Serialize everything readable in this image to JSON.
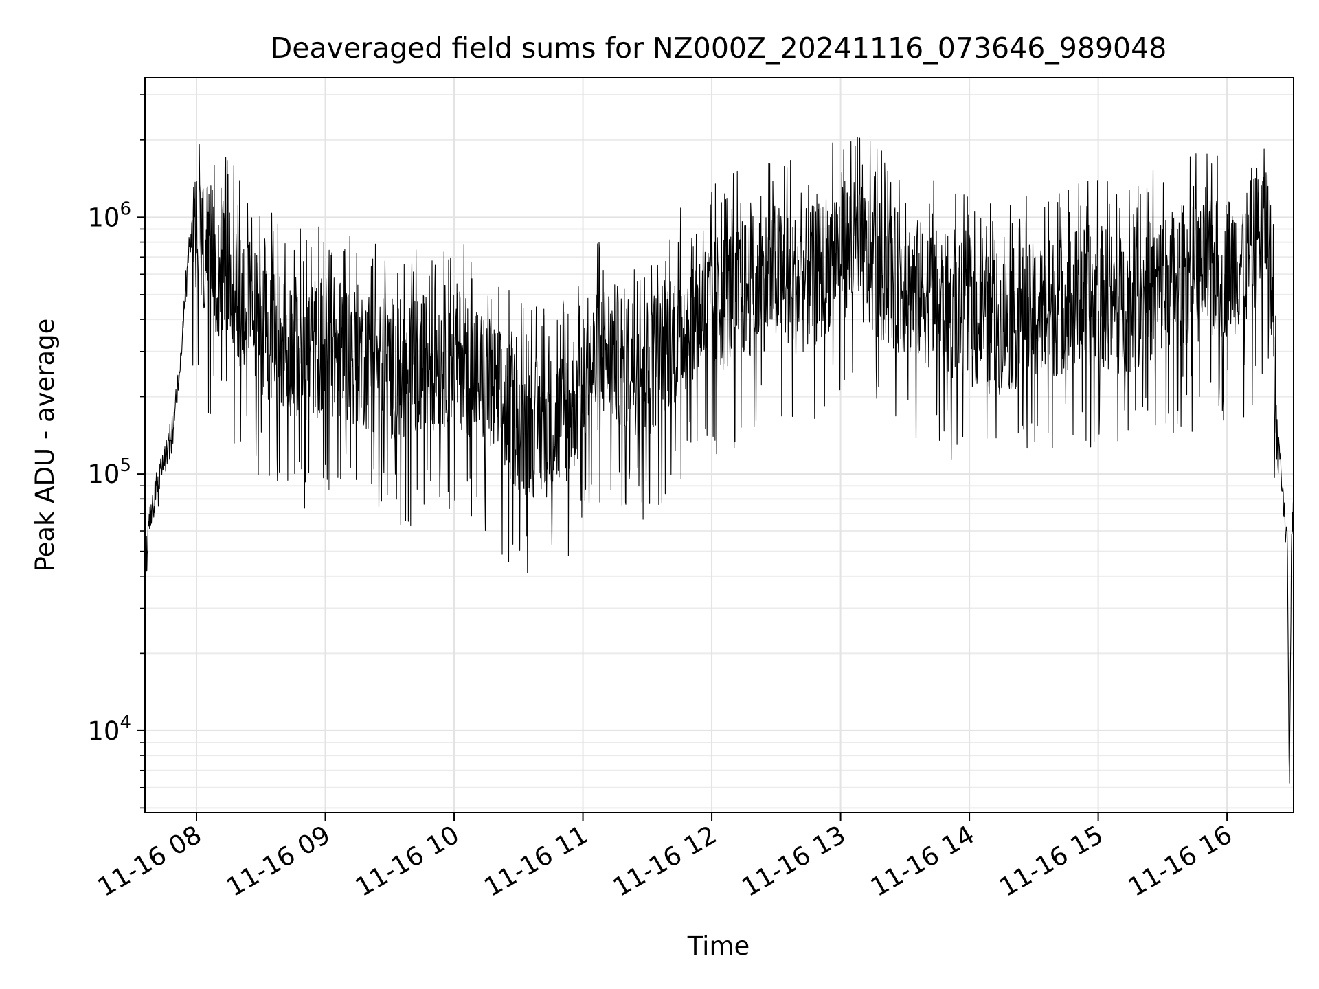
{
  "chart_data": {
    "type": "line",
    "title": "Deaveraged field sums for NZ000Z_20241116_073646_989048",
    "xlabel": "Time",
    "ylabel": "Peak ADU - average",
    "yscale": "log",
    "xlim": [
      "2024-11-16 07:36",
      "2024-11-16 16:31"
    ],
    "ylim": [
      4800,
      3500000
    ],
    "x_ticks": [
      "11-16 08",
      "11-16 09",
      "11-16 10",
      "11-16 11",
      "11-16 12",
      "11-16 13",
      "11-16 14",
      "11-16 15",
      "11-16 16"
    ],
    "y_ticks": [
      {
        "base": "10",
        "exp": "4",
        "value": 10000
      },
      {
        "base": "10",
        "exp": "5",
        "value": 100000
      },
      {
        "base": "10",
        "exp": "6",
        "value": 1000000
      }
    ],
    "grid": true,
    "legend": "none",
    "line_color": "#000000",
    "series": [
      {
        "x": [
          "07:36",
          "07:38",
          "07:40",
          "07:42",
          "07:44",
          "07:46",
          "07:48",
          "07:50",
          "07:52",
          "07:54",
          "07:56",
          "07:58",
          "08:00",
          "08:10",
          "08:20",
          "08:30",
          "08:40",
          "08:50",
          "09:00",
          "09:10",
          "09:20",
          "09:30",
          "09:40",
          "09:50",
          "10:00",
          "10:10",
          "10:20",
          "10:30",
          "10:40",
          "10:50",
          "11:00",
          "11:10",
          "11:20",
          "11:30",
          "11:40",
          "11:50",
          "12:00",
          "12:10",
          "12:20",
          "12:30",
          "12:40",
          "12:50",
          "13:00",
          "13:10",
          "13:20",
          "13:30",
          "13:40",
          "13:50",
          "14:00",
          "14:10",
          "14:20",
          "14:30",
          "14:40",
          "14:50",
          "15:00",
          "15:10",
          "15:20",
          "15:30",
          "15:40",
          "15:50",
          "16:00",
          "16:10",
          "16:15",
          "16:18",
          "16:20",
          "16:22",
          "16:24",
          "16:26",
          "16:28",
          "16:29",
          "16:30",
          "16:31"
        ],
        "y": [
          40000,
          65000,
          75000,
          90000,
          110000,
          130000,
          150000,
          170000,
          250000,
          400000,
          700000,
          900000,
          800000,
          650000,
          500000,
          380000,
          330000,
          300000,
          320000,
          300000,
          280000,
          260000,
          250000,
          280000,
          300000,
          250000,
          200000,
          160000,
          150000,
          160000,
          220000,
          300000,
          280000,
          260000,
          330000,
          400000,
          450000,
          500000,
          550000,
          600000,
          550000,
          600000,
          800000,
          700000,
          600000,
          550000,
          500000,
          450000,
          400000,
          380000,
          400000,
          420000,
          450000,
          480000,
          500000,
          450000,
          500000,
          550000,
          600000,
          600000,
          650000,
          700000,
          900000,
          1000000,
          700000,
          300000,
          150000,
          80000,
          60000,
          6200,
          50000,
          90000
        ]
      }
    ]
  }
}
